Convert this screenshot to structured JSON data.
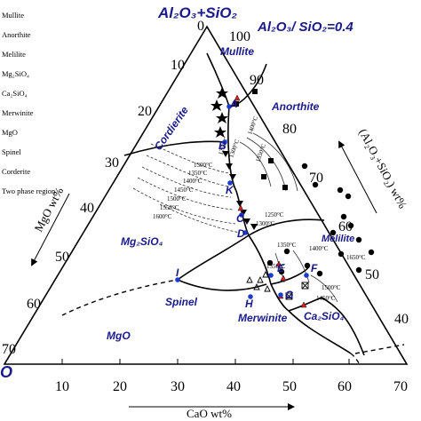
{
  "title": {
    "corners": "Al₂O₃+SiO₂",
    "ratio": "Al₂O₃/ SiO₂=0.4"
  },
  "axes": {
    "left": "MgO wt%",
    "right": "(Al₂O₃+SiO₂) wt%",
    "bottom": "CaO wt%",
    "bottom_ticks": [
      "10",
      "20",
      "30",
      "40",
      "50",
      "60",
      "70"
    ],
    "left_ticks": [
      "10",
      "20",
      "30",
      "40",
      "50",
      "60",
      "70"
    ],
    "right_ticks": [
      "100",
      "90",
      "80",
      "70",
      "60",
      "50",
      "40"
    ],
    "top_zero": "0",
    "corner_left": "O"
  },
  "legend": [
    "Mullite",
    "Anorthite",
    "Melilite",
    "Mg₂SiO₄",
    "Ca₂SiO₄",
    "Merwinite",
    "MgO",
    "Spinel",
    "Corderite",
    "Two phase region"
  ],
  "phases": {
    "mullite": "Mullite",
    "anorthite": "Anorthite",
    "cordierite": "Cordierite",
    "mg2sio4": "Mg₂SiO₄",
    "melilite": "Melilite",
    "spinel": "Spinel",
    "merwinite": "Merwinite",
    "ca2sio4": "Ca₂SiO₄",
    "mgo": "MgO"
  },
  "points": {
    "A": "A",
    "B": "B",
    "K": "K",
    "C": "C",
    "D": "D",
    "E": "E",
    "F": "F",
    "G": "G",
    "H": "H",
    "I": "I"
  },
  "isotherms": {
    "i1400a": "1400°C",
    "i1350a": "1350°C",
    "i1300a": "1300°C",
    "i1250a": "1250°C",
    "i1300b": "1300°C",
    "i1350b": "1350°C",
    "i1400b": "1400°C",
    "i1450b": "1450°C",
    "i1500b": "1500°C",
    "i1550b": "1550°C",
    "i1600b": "1600°C",
    "i1250c": "1250°C",
    "i1300c": "1300°C",
    "i1350c": "1350°C",
    "i1400c": "1400°C",
    "i1650c": "1650°C",
    "i1500c": "1500°C",
    "i1450c": "1450°C",
    "i1350d": "1350°C"
  }
}
